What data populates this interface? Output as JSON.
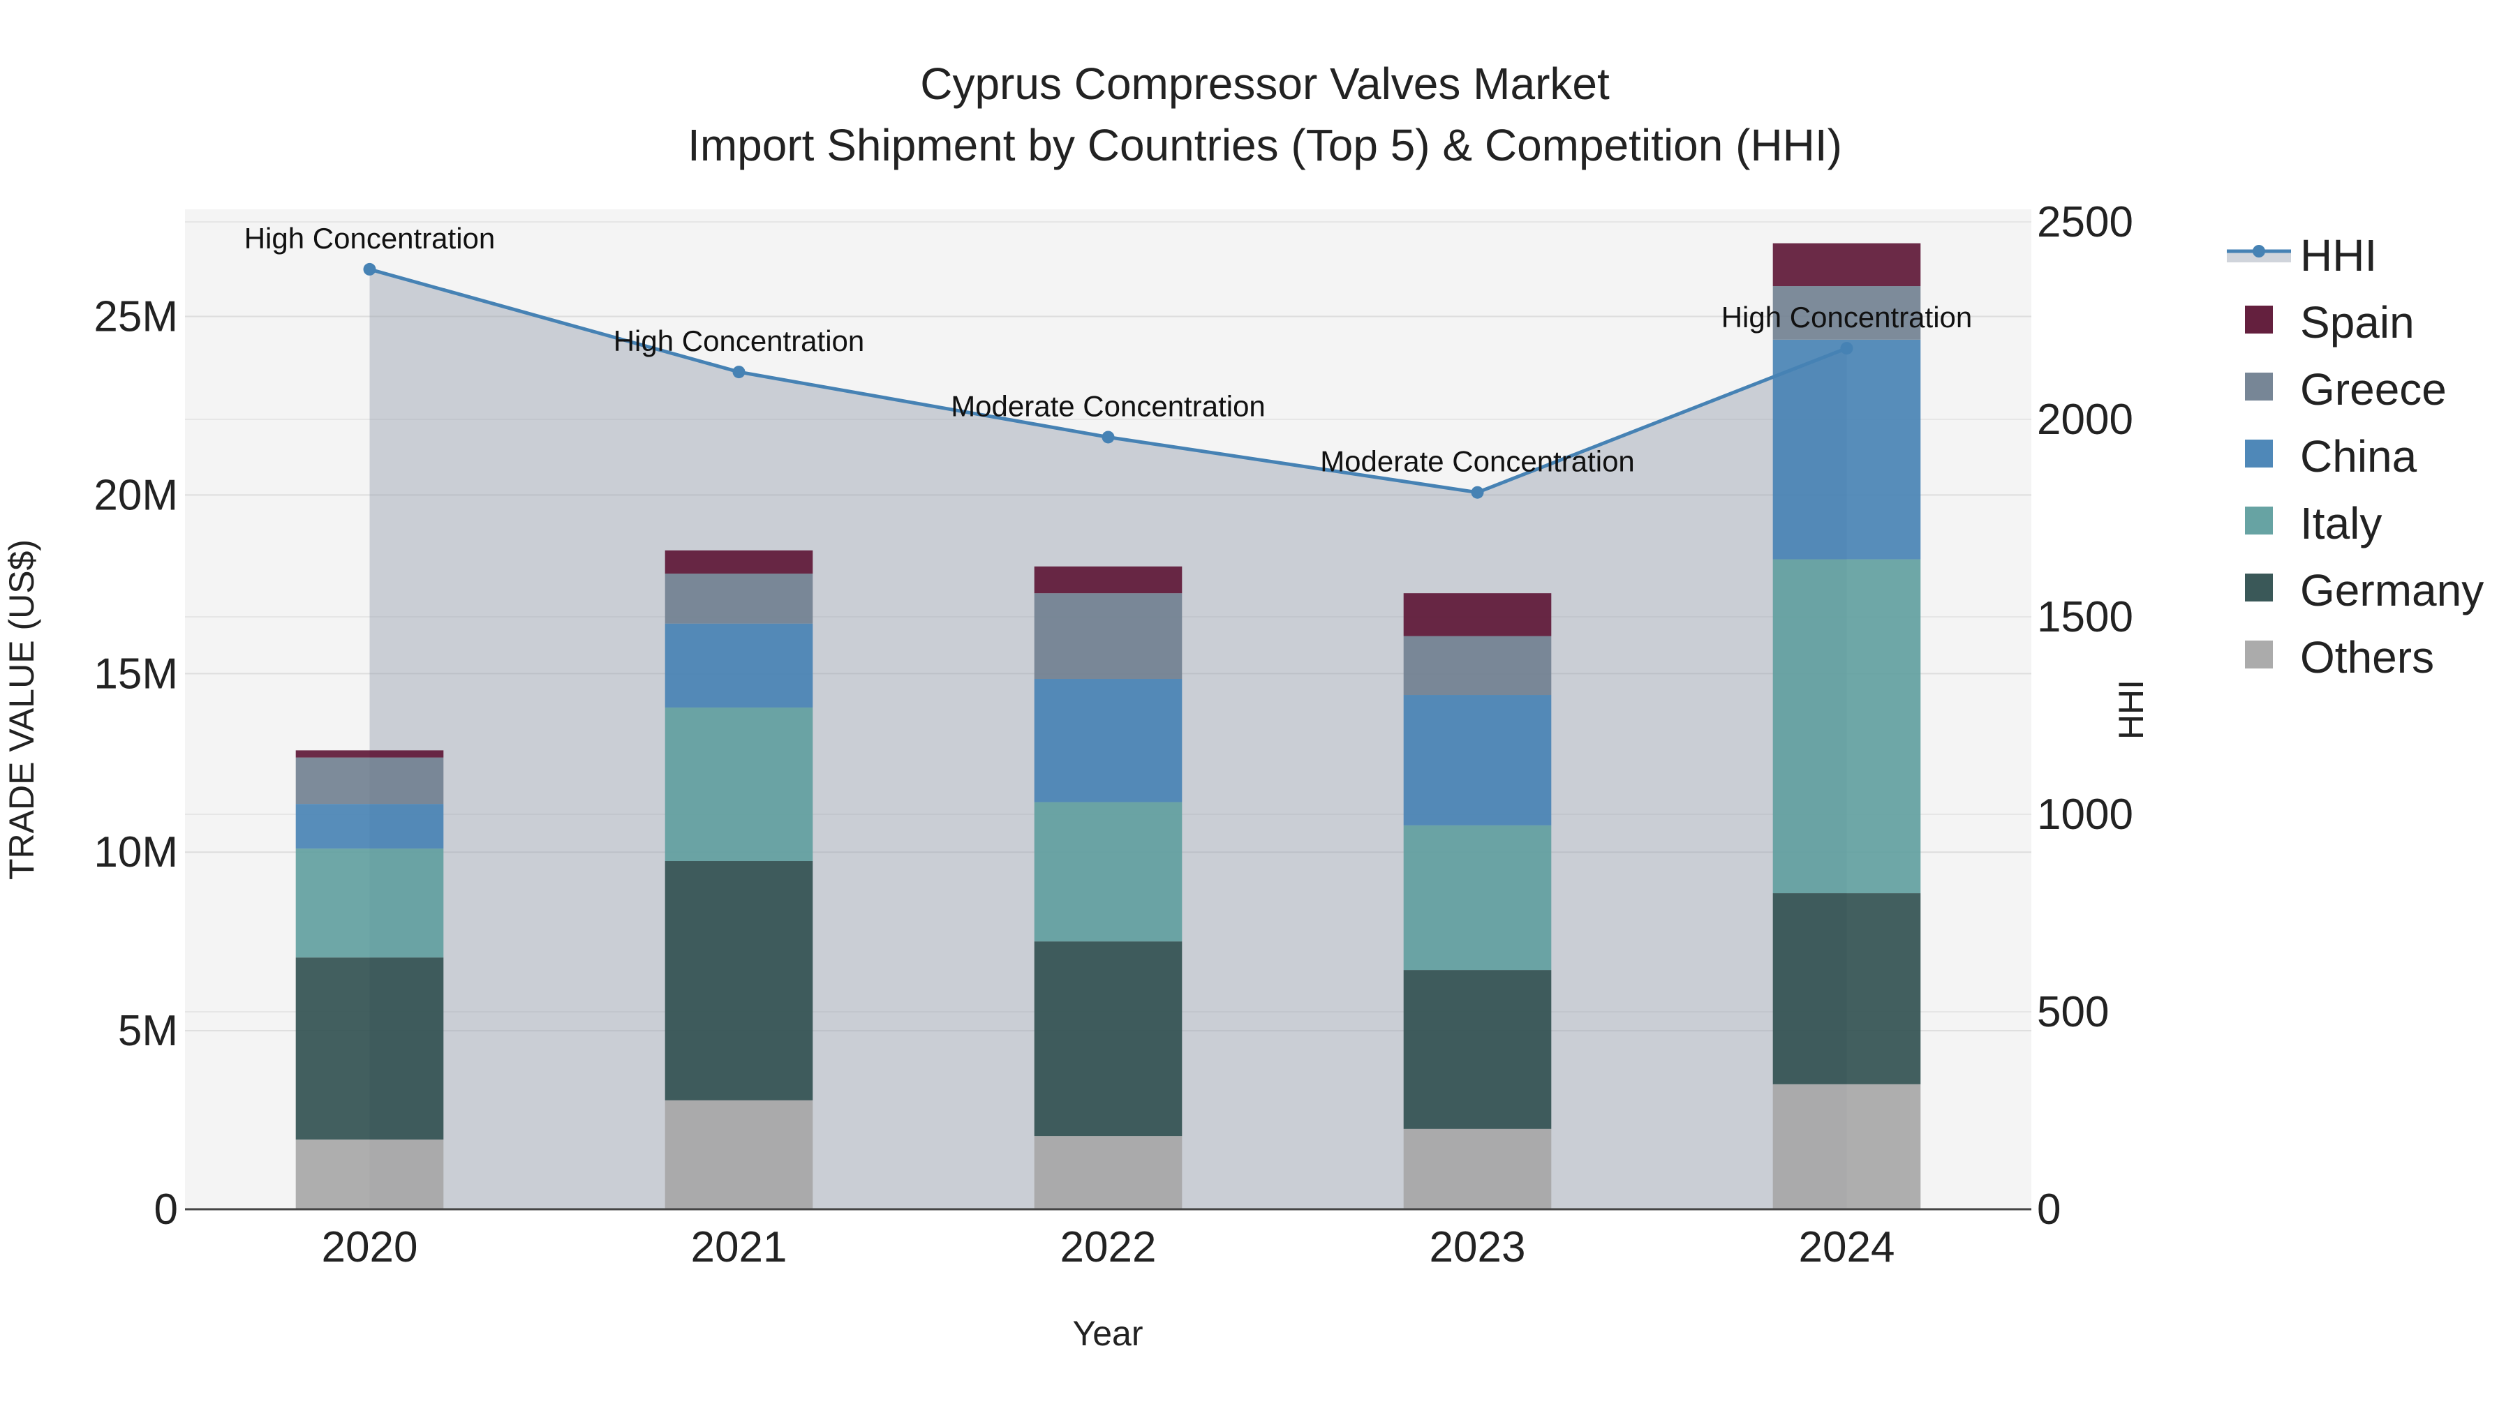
{
  "chart_data": {
    "type": "bar",
    "stacked": true,
    "title_line1": "Cyprus Compressor Valves Market",
    "title_line2": "Import Shipment by Countries (Top 5) & Competition (HHI)",
    "xlabel": "Year",
    "ylabel": "TRADE VALUE (US$)",
    "y2label": "HHI",
    "categories": [
      "2020",
      "2021",
      "2022",
      "2023",
      "2024"
    ],
    "ylim": [
      0,
      28000000
    ],
    "yticks": [
      0,
      5000000,
      10000000,
      15000000,
      20000000,
      25000000
    ],
    "ytick_labels": [
      "0",
      "5M",
      "10M",
      "15M",
      "20M",
      "25M"
    ],
    "y2lim": [
      0,
      2500
    ],
    "y2ticks": [
      0,
      500,
      1000,
      1500,
      2000,
      2500
    ],
    "y2tick_labels": [
      "0",
      "500",
      "1000",
      "1500",
      "2000",
      "2500"
    ],
    "series": [
      {
        "name": "Others",
        "color": "#a6a6a6",
        "values": [
          1950000,
          3050000,
          2050000,
          2250000,
          3500000
        ]
      },
      {
        "name": "Germany",
        "color": "#2f4f4f",
        "values": [
          5100000,
          6700000,
          5450000,
          4450000,
          5350000
        ]
      },
      {
        "name": "Italy",
        "color": "#5f9e9e",
        "values": [
          3050000,
          4300000,
          3900000,
          4050000,
          9350000
        ]
      },
      {
        "name": "China",
        "color": "#4682b4",
        "values": [
          1250000,
          2350000,
          3450000,
          3650000,
          6150000
        ]
      },
      {
        "name": "Greece",
        "color": "#708090",
        "values": [
          1300000,
          1400000,
          2400000,
          1650000,
          1500000
        ]
      },
      {
        "name": "Spain",
        "color": "#5c1434",
        "values": [
          200000,
          650000,
          750000,
          1200000,
          1200000
        ]
      }
    ],
    "hhi": {
      "name": "HHI",
      "color": "#4682b4",
      "values": [
        2380,
        2120,
        1955,
        1815,
        2180
      ],
      "annotations": [
        "High Concentration",
        "High Concentration",
        "Moderate Concentration",
        "Moderate Concentration",
        "High Concentration"
      ]
    },
    "legend": [
      "HHI",
      "Spain",
      "Greece",
      "China",
      "Italy",
      "Germany",
      "Others"
    ],
    "legend_position": "right"
  }
}
